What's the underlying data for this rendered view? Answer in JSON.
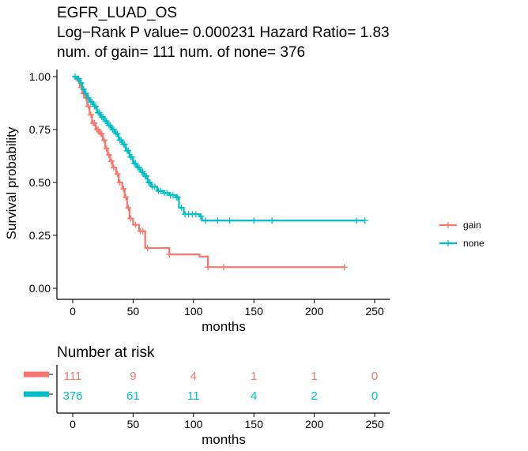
{
  "colors": {
    "gain": "#F8766D",
    "none": "#00BFC4"
  },
  "titles": {
    "line1": "EGFR_LUAD_OS",
    "line2": "Log−Rank P value= 0.000231  Hazard Ratio= 1.83",
    "line3": "num. of gain= 111  num. of none= 376"
  },
  "chart_data": {
    "type": "line",
    "subtype": "kaplan-meier",
    "xlabel": "months",
    "ylabel": "Survival probability",
    "xlim": [
      0,
      250
    ],
    "ylim": [
      0,
      1
    ],
    "x_ticks": [
      0,
      50,
      100,
      150,
      200,
      250
    ],
    "x_tick_labels": [
      "0",
      "50",
      "100",
      "150",
      "200",
      "250"
    ],
    "y_ticks": [
      0,
      0.25,
      0.5,
      0.75,
      1.0
    ],
    "y_tick_labels": [
      "0.00",
      "0.25",
      "0.50",
      "0.75",
      "1.00"
    ],
    "legend_position": "right",
    "series": [
      {
        "name": "gain",
        "color": "#F8766D",
        "steps": [
          [
            0,
            1.0
          ],
          [
            4,
            0.98
          ],
          [
            6,
            0.95
          ],
          [
            8,
            0.92
          ],
          [
            10,
            0.9
          ],
          [
            12,
            0.86
          ],
          [
            14,
            0.82
          ],
          [
            16,
            0.78
          ],
          [
            19,
            0.75
          ],
          [
            22,
            0.73
          ],
          [
            25,
            0.7
          ],
          [
            27,
            0.66
          ],
          [
            29,
            0.63
          ],
          [
            31,
            0.6
          ],
          [
            33,
            0.57
          ],
          [
            36,
            0.54
          ],
          [
            38,
            0.5
          ],
          [
            41,
            0.47
          ],
          [
            43,
            0.43
          ],
          [
            45,
            0.38
          ],
          [
            47,
            0.33
          ],
          [
            50,
            0.3
          ],
          [
            55,
            0.27
          ],
          [
            60,
            0.19
          ],
          [
            80,
            0.16
          ],
          [
            105,
            0.15
          ],
          [
            112,
            0.1
          ],
          [
            225,
            0.1
          ]
        ],
        "censor_x": [
          5,
          7,
          9,
          11,
          13,
          15,
          17,
          18,
          20,
          21,
          23,
          24,
          26,
          28,
          30,
          32,
          34,
          37,
          39,
          42,
          44,
          46,
          48,
          52,
          56,
          58,
          62,
          80,
          112,
          125,
          225
        ]
      },
      {
        "name": "none",
        "color": "#00BFC4",
        "steps": [
          [
            0,
            1.0
          ],
          [
            3,
            0.99
          ],
          [
            6,
            0.97
          ],
          [
            8,
            0.94
          ],
          [
            10,
            0.92
          ],
          [
            12,
            0.9
          ],
          [
            14,
            0.88
          ],
          [
            17,
            0.86
          ],
          [
            20,
            0.83
          ],
          [
            23,
            0.81
          ],
          [
            26,
            0.79
          ],
          [
            29,
            0.77
          ],
          [
            32,
            0.75
          ],
          [
            35,
            0.73
          ],
          [
            38,
            0.7
          ],
          [
            41,
            0.68
          ],
          [
            44,
            0.65
          ],
          [
            47,
            0.62
          ],
          [
            50,
            0.59
          ],
          [
            53,
            0.57
          ],
          [
            56,
            0.55
          ],
          [
            59,
            0.53
          ],
          [
            62,
            0.5
          ],
          [
            65,
            0.48
          ],
          [
            70,
            0.46
          ],
          [
            75,
            0.45
          ],
          [
            80,
            0.44
          ],
          [
            85,
            0.43
          ],
          [
            88,
            0.38
          ],
          [
            92,
            0.35
          ],
          [
            105,
            0.34
          ],
          [
            107,
            0.32
          ],
          [
            242,
            0.32
          ]
        ],
        "censor_x": [
          2,
          4,
          5,
          7,
          9,
          11,
          13,
          15,
          16,
          18,
          19,
          21,
          22,
          24,
          25,
          27,
          28,
          30,
          31,
          33,
          34,
          36,
          37,
          39,
          40,
          42,
          43,
          45,
          46,
          48,
          49,
          51,
          52,
          54,
          55,
          57,
          58,
          60,
          61,
          63,
          64,
          66,
          68,
          71,
          73,
          76,
          78,
          81,
          83,
          86,
          87,
          90,
          93,
          96,
          99,
          102,
          106,
          110,
          120,
          130,
          150,
          165,
          235,
          242
        ]
      }
    ],
    "risk_table": {
      "title": "Number at risk",
      "xlabel": "months",
      "times": [
        0,
        50,
        100,
        150,
        200,
        250
      ],
      "rows": [
        {
          "name": "gain",
          "values": [
            "111",
            "9",
            "4",
            "1",
            "1",
            "0"
          ]
        },
        {
          "name": "none",
          "values": [
            "376",
            "61",
            "11",
            "4",
            "2",
            "0"
          ]
        }
      ]
    }
  }
}
